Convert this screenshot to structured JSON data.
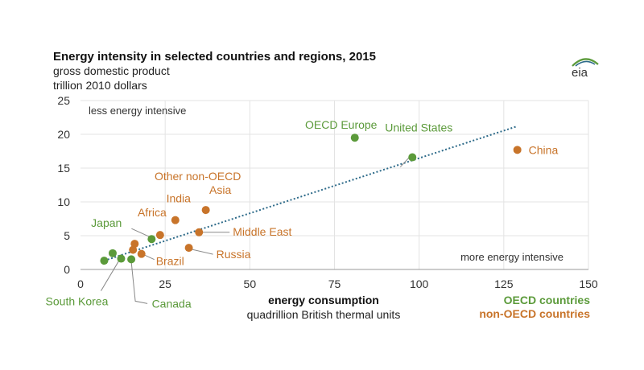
{
  "header": {
    "title": "Energy intensity in selected countries and regions, 2015",
    "subtitle1": "gross domestic product",
    "subtitle2": "trillion 2010 dollars",
    "logo_text": "eia"
  },
  "colors": {
    "oecd": "#5b9a3a",
    "non_oecd": "#c8742a",
    "trend": "#2e6b8a",
    "grid": "#e3e3e3",
    "axis": "#999999"
  },
  "chart_data": {
    "type": "scatter",
    "title": "Energy intensity in selected countries and regions, 2015",
    "xlabel": "energy consumption",
    "xlabel_sub": "quadrillion British thermal units",
    "ylabel": "gross domestic product",
    "ylabel_sub": "trillion 2010 dollars",
    "xlim": [
      0,
      150
    ],
    "ylim": [
      0,
      25
    ],
    "xticks": [
      0,
      25,
      50,
      75,
      100,
      125,
      150
    ],
    "yticks": [
      0,
      5,
      10,
      15,
      20,
      25
    ],
    "grid": true,
    "annotations": [
      "less energy intensive",
      "more energy intensive"
    ],
    "legend": [
      "OECD countries",
      "non-OECD countries"
    ],
    "legend_placement": "bottom-right",
    "trendline": {
      "x": [
        7,
        129
      ],
      "y": [
        1.3,
        21.2
      ]
    },
    "series": [
      {
        "name": "OECD countries",
        "points": [
          {
            "label": "OECD Europe",
            "x": 81,
            "y": 19.5
          },
          {
            "label": "United States",
            "x": 98,
            "y": 16.6
          },
          {
            "label": "Japan",
            "x": 21,
            "y": 4.5
          },
          {
            "label": "South Korea",
            "x": 12,
            "y": 1.6
          },
          {
            "label": "Canada",
            "x": 15,
            "y": 1.5
          },
          {
            "label": "",
            "x": 7,
            "y": 1.3
          },
          {
            "label": "",
            "x": 9.5,
            "y": 2.4
          }
        ]
      },
      {
        "name": "non-OECD countries",
        "points": [
          {
            "label": "China",
            "x": 129,
            "y": 17.7
          },
          {
            "label": "India",
            "x": 28,
            "y": 7.3
          },
          {
            "label": "Other non-OECD Asia",
            "x": 37,
            "y": 8.8
          },
          {
            "label": "Africa",
            "x": 23.5,
            "y": 5.1
          },
          {
            "label": "Middle East",
            "x": 35,
            "y": 5.5
          },
          {
            "label": "Russia",
            "x": 32,
            "y": 3.2
          },
          {
            "label": "Brazil",
            "x": 18,
            "y": 2.3
          },
          {
            "label": "",
            "x": 16,
            "y": 3.8
          },
          {
            "label": "",
            "x": 15.5,
            "y": 2.9
          }
        ]
      }
    ]
  }
}
